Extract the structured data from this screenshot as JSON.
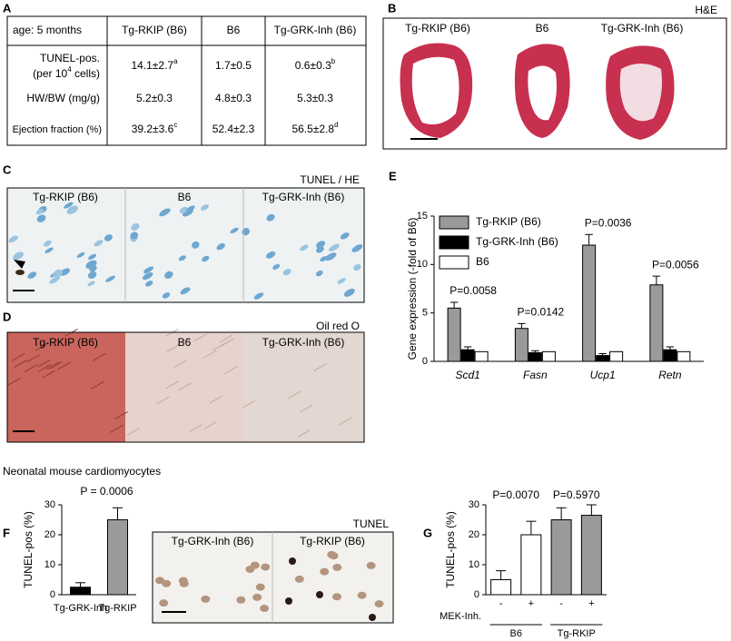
{
  "panel_labels": [
    "A",
    "B",
    "C",
    "D",
    "E",
    "F",
    "G"
  ],
  "table": {
    "header": [
      "age: 5 months",
      "Tg-RKIP (B6)",
      "B6",
      "Tg-GRK-Inh (B6)"
    ],
    "rows": [
      [
        {
          "line1": "TUNEL-pos.",
          "line2": "(per 10",
          "sup": "4",
          "line2_end": " cells)"
        },
        {
          "text": "14.1±2.7",
          "sup": "a"
        },
        {
          "text": "1.7±0.5"
        },
        {
          "text": "0.6±0.3",
          "sup": "b"
        }
      ],
      [
        {
          "text": "HW/BW (mg/g)"
        },
        {
          "text": "5.2±0.3"
        },
        {
          "text": "4.8±0.3"
        },
        {
          "text": "5.3±0.3"
        }
      ],
      [
        {
          "text": "Ejection fraction (%)"
        },
        {
          "text": "39.2±3.6",
          "sup": "c"
        },
        {
          "text": "52.4±2.3"
        },
        {
          "text": "56.5±2.8",
          "sup": "d"
        }
      ]
    ]
  },
  "image_panels": {
    "he": {
      "stain": "H&E",
      "labels": [
        "Tg-RKIP (B6)",
        "B6",
        "Tg-GRK-Inh (B6)"
      ]
    },
    "tunel_he": {
      "stain": "TUNEL / HE",
      "labels": [
        "Tg-RKIP (B6)",
        "B6",
        "Tg-GRK-Inh (B6)"
      ]
    },
    "oil_red": {
      "stain": "Oil red O",
      "labels": [
        "Tg-RKIP (B6)",
        "B6",
        "Tg-GRK-Inh (B6)"
      ]
    },
    "tunel": {
      "stain": "TUNEL",
      "labels": [
        "Tg-GRK-Inh (B6)",
        "Tg-RKIP (B6)"
      ]
    }
  },
  "section_title": "Neonatal mouse cardiomyocytes",
  "chart_data": [
    {
      "type": "bar",
      "ylabel": "Gene expression (-fold of B6)",
      "categories": [
        "Scd1",
        "Fasn",
        "Ucp1",
        "Retn"
      ],
      "series": [
        {
          "name": "Tg-RKIP (B6)",
          "color": "#9a9a9a",
          "values": [
            5.5,
            3.4,
            12,
            7.9
          ],
          "errors": [
            0.6,
            0.5,
            1.1,
            0.9
          ]
        },
        {
          "name": "Tg-GRK-Inh (B6)",
          "color": "#000000",
          "values": [
            1.2,
            0.9,
            0.6,
            1.2
          ],
          "errors": [
            0.3,
            0.2,
            0.2,
            0.3
          ]
        },
        {
          "name": "B6",
          "color": "#ffffff",
          "values": [
            1,
            1,
            1,
            1
          ]
        }
      ],
      "annotations": [
        "P=0.0058",
        "P=0.0142",
        "P=0.0036",
        "P=0.0056"
      ],
      "ylim": [
        0,
        15
      ],
      "yticks": [
        0,
        5,
        10,
        15
      ],
      "legend": "top-left"
    },
    {
      "type": "bar",
      "ylabel": "TUNEL-pos (%)",
      "categories": [
        "Tg-GRK-Inh",
        "Tg-RKIP"
      ],
      "values": [
        2.5,
        25
      ],
      "errors": [
        1.5,
        4
      ],
      "colors": [
        "#000000",
        "#9a9a9a"
      ],
      "annotation": "P = 0.0006",
      "ylim": [
        0,
        30
      ],
      "yticks": [
        0,
        10,
        20,
        30
      ]
    },
    {
      "type": "bar",
      "ylabel": "TUNEL-pos (%)",
      "categories": [
        "-",
        "+",
        "-",
        "+"
      ],
      "values": [
        5,
        20,
        25,
        26.5
      ],
      "errors": [
        3,
        4.5,
        4,
        3.5
      ],
      "colors": [
        "#ffffff",
        "#ffffff",
        "#9a9a9a",
        "#9a9a9a"
      ],
      "row_label": "MEK-Inh.",
      "group_labels": [
        "B6",
        "Tg-RKIP"
      ],
      "annotations": [
        "P=0.0070",
        "P=0.5970"
      ],
      "ylim": [
        0,
        30
      ],
      "yticks": [
        0,
        10,
        20,
        30
      ]
    }
  ]
}
